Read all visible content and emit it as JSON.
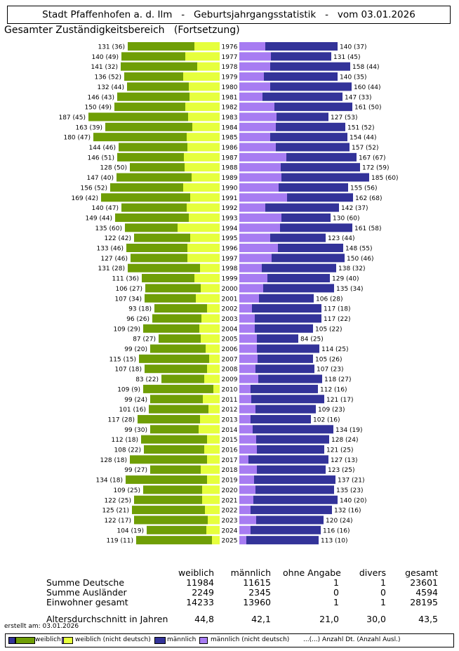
{
  "header": {
    "title": "Stadt Pfaffenhofen a. d. Ilm   -   Geburtsjahrgangsstatistik   -   vom 03.01.2026",
    "subtitle": "Gesamter Zuständigkeitsbereich   (Fortsetzung)"
  },
  "colors": {
    "female_german": "#6f9e06",
    "female_foreign": "#e6ff3d",
    "male_german": "#333399",
    "male_foreign": "#a77cf2"
  },
  "chart_data": {
    "type": "bar",
    "orientation": "horizontal-pyramid",
    "years": [
      "1976",
      "1977",
      "1978",
      "1979",
      "1980",
      "1981",
      "1982",
      "1983",
      "1984",
      "1985",
      "1986",
      "1987",
      "1988",
      "1989",
      "1990",
      "1991",
      "1992",
      "1993",
      "1994",
      "1995",
      "1996",
      "1997",
      "1998",
      "1999",
      "2000",
      "2001",
      "2002",
      "2003",
      "2004",
      "2005",
      "2006",
      "2007",
      "2008",
      "2009",
      "2010",
      "2011",
      "2012",
      "2013",
      "2014",
      "2015",
      "2016",
      "2017",
      "2018",
      "2019",
      "2020",
      "2021",
      "2022",
      "2023",
      "2024",
      "2025"
    ],
    "female_total": [
      131,
      140,
      141,
      136,
      132,
      146,
      150,
      187,
      163,
      180,
      144,
      146,
      128,
      147,
      156,
      169,
      140,
      149,
      135,
      122,
      133,
      127,
      131,
      111,
      106,
      107,
      93,
      96,
      109,
      87,
      99,
      115,
      107,
      83,
      109,
      99,
      101,
      117,
      99,
      112,
      108,
      128,
      99,
      134,
      109,
      122,
      125,
      122,
      104,
      119
    ],
    "female_foreign": [
      36,
      49,
      32,
      52,
      44,
      43,
      49,
      45,
      39,
      47,
      46,
      51,
      50,
      40,
      52,
      42,
      47,
      44,
      60,
      42,
      46,
      46,
      28,
      36,
      27,
      34,
      18,
      26,
      29,
      27,
      20,
      15,
      18,
      22,
      9,
      24,
      16,
      28,
      30,
      18,
      22,
      18,
      27,
      18,
      25,
      25,
      21,
      17,
      19,
      11
    ],
    "male_total": [
      140,
      131,
      158,
      140,
      160,
      147,
      161,
      127,
      151,
      154,
      157,
      167,
      172,
      185,
      155,
      162,
      142,
      130,
      161,
      123,
      148,
      150,
      138,
      129,
      135,
      106,
      117,
      117,
      105,
      84,
      114,
      105,
      107,
      118,
      112,
      121,
      109,
      102,
      134,
      128,
      121,
      127,
      123,
      137,
      135,
      140,
      132,
      120,
      116,
      113
    ],
    "male_foreign": [
      37,
      45,
      44,
      35,
      44,
      33,
      50,
      53,
      52,
      44,
      52,
      67,
      59,
      60,
      56,
      68,
      37,
      60,
      58,
      44,
      55,
      46,
      32,
      40,
      34,
      28,
      18,
      22,
      22,
      25,
      25,
      26,
      23,
      27,
      16,
      17,
      23,
      16,
      19,
      24,
      25,
      13,
      25,
      21,
      23,
      20,
      16,
      24,
      16,
      10
    ],
    "labels_female": [
      "131 (36)",
      "140 (49)",
      "141 (32)",
      "136 (52)",
      "132 (44)",
      "146 (43)",
      "150 (49)",
      "187 (45)",
      "163 (39)",
      "180 (47)",
      "144 (46)",
      "146 (51)",
      "128 (50)",
      "147 (40)",
      "156 (52)",
      "169 (42)",
      "140 (47)",
      "149 (44)",
      "135 (60)",
      "122 (42)",
      "133 (46)",
      "127 (46)",
      "131 (28)",
      "111 (36)",
      "106 (27)",
      "107 (34)",
      "93 (18)",
      "96 (26)",
      "109 (29)",
      "87 (27)",
      "99 (20)",
      "115 (15)",
      "107 (18)",
      "83 (22)",
      "109 (9)",
      "99 (24)",
      "101 (16)",
      "117 (28)",
      "99 (30)",
      "112 (18)",
      "108 (22)",
      "128 (18)",
      "99 (27)",
      "134 (18)",
      "109 (25)",
      "122 (25)",
      "125 (21)",
      "122 (17)",
      "104 (19)",
      "119 (11)"
    ],
    "labels_male": [
      "140 (37)",
      "131 (45)",
      "158 (44)",
      "140 (35)",
      "160 (44)",
      "147 (33)",
      "161 (50)",
      "127 (53)",
      "151 (52)",
      "154 (44)",
      "157 (52)",
      "167 (67)",
      "172 (59)",
      "185 (60)",
      "155 (56)",
      "162 (68)",
      "142 (37)",
      "130 (60)",
      "161 (58)",
      "123 (44)",
      "148 (55)",
      "150 (46)",
      "138 (32)",
      "129 (40)",
      "135 (34)",
      "106 (28)",
      "117 (18)",
      "117 (22)",
      "105 (22)",
      "84 (25)",
      "114 (25)",
      "105 (26)",
      "107 (23)",
      "118 (27)",
      "112 (16)",
      "121 (17)",
      "109 (23)",
      "102 (16)",
      "134 (19)",
      "128 (24)",
      "121 (25)",
      "127 (13)",
      "123 (25)",
      "137 (21)",
      "135 (23)",
      "140 (20)",
      "132 (16)",
      "120 (24)",
      "116 (16)",
      "113 (10)"
    ]
  },
  "summary": {
    "columns": [
      "weiblich",
      "männlich",
      "ohne Angabe",
      "divers",
      "gesamt"
    ],
    "rows": [
      {
        "label": "Summe Deutsche",
        "values": [
          "11984",
          "11615",
          "1",
          "1",
          "23601"
        ]
      },
      {
        "label": "Summe Ausländer",
        "values": [
          "2249",
          "2345",
          "0",
          "0",
          "4594"
        ]
      },
      {
        "label": "Einwohner gesamt",
        "values": [
          "14233",
          "13960",
          "1",
          "1",
          "28195"
        ]
      }
    ],
    "avg_label": "Altersdurchschnitt in Jahren",
    "avg_values": [
      "44,8",
      "42,1",
      "21,0",
      "30,0",
      "43,5"
    ]
  },
  "created": "erstellt am: 03.01.2026",
  "legend": {
    "female": "weiblich",
    "female_foreign": "weiblich (nicht deutsch)",
    "male": "männlich",
    "male_foreign": "männlich (nicht deutsch)",
    "note": "...(...) Anzahl Dt. (Anzahl Ausl.)"
  }
}
